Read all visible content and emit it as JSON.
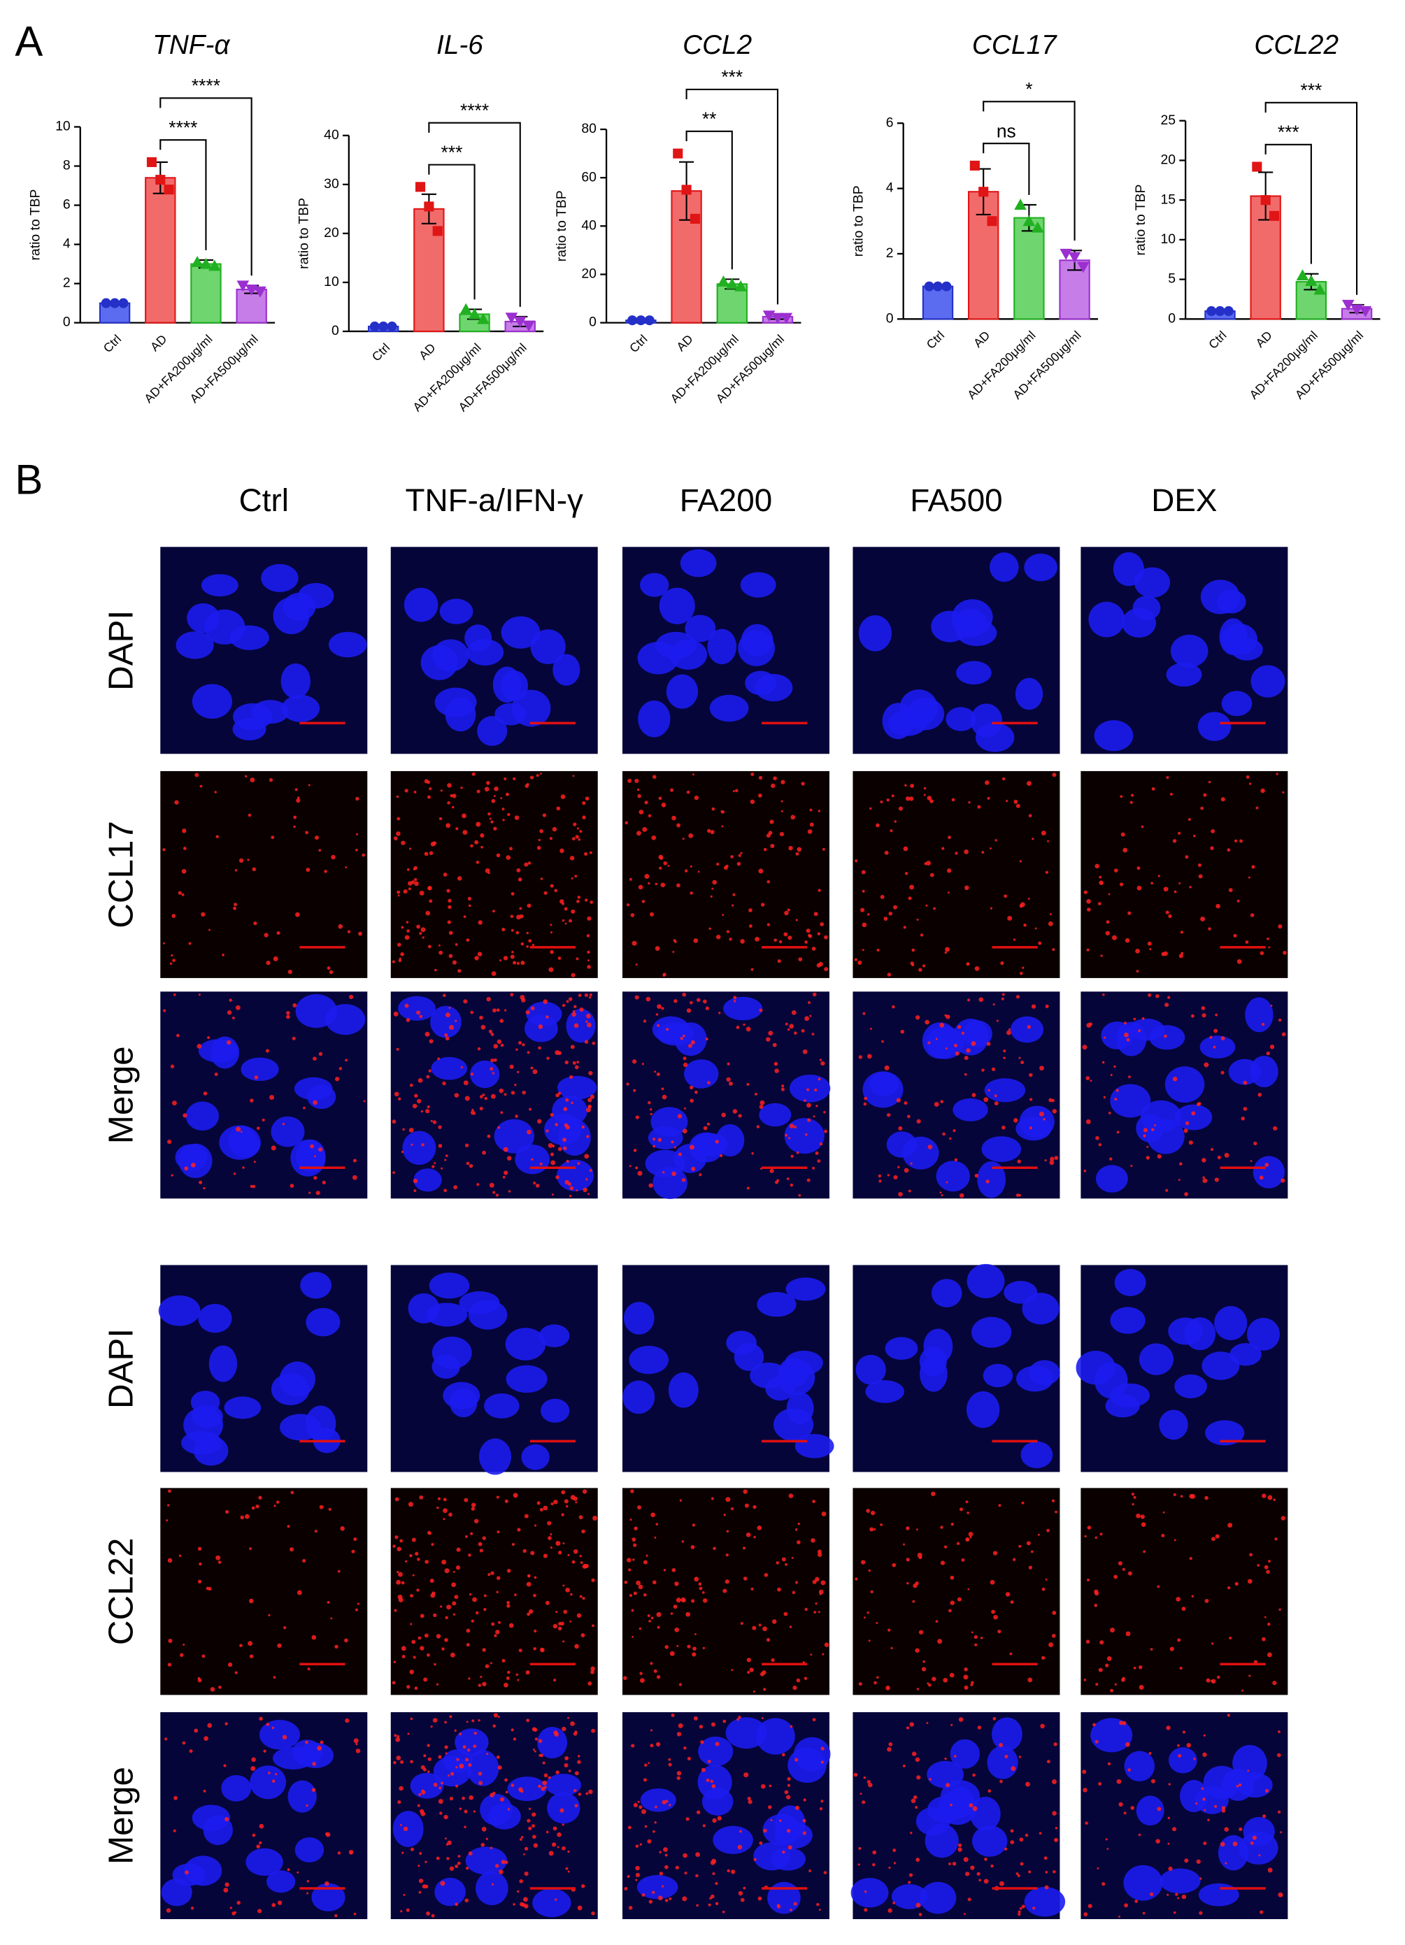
{
  "panel_a_label": "A",
  "panel_b_label": "B",
  "chart_data": [
    {
      "type": "bar",
      "title": "TNF-α",
      "ylabel": "ratio to TBP",
      "categories": [
        "Ctrl",
        "AD",
        "AD+FA200μg/ml",
        "AD+FA500μg/ml"
      ],
      "colors": [
        "#5b6cf0",
        "#f26b6b",
        "#6fd66f",
        "#c77de8"
      ],
      "values": [
        1.0,
        7.4,
        3.0,
        1.7
      ],
      "errors": [
        0.05,
        0.8,
        0.2,
        0.2
      ],
      "points": [
        [
          1.0,
          1.0,
          1.0
        ],
        [
          8.2,
          7.3,
          6.8
        ],
        [
          3.1,
          3.0,
          2.9
        ],
        [
          1.9,
          1.7,
          1.6
        ]
      ],
      "significance": [
        "****",
        "****"
      ],
      "ylim": [
        0,
        10
      ],
      "yticks": [
        0,
        2,
        4,
        6,
        8,
        10
      ]
    },
    {
      "type": "bar",
      "title": "IL-6",
      "ylabel": "ratio to TBP",
      "categories": [
        "Ctrl",
        "AD",
        "AD+FA200μg/ml",
        "AD+FA500μg/ml"
      ],
      "colors": [
        "#5b6cf0",
        "#f26b6b",
        "#6fd66f",
        "#c77de8"
      ],
      "values": [
        1.0,
        25,
        3.5,
        2
      ],
      "errors": [
        0.1,
        3,
        1,
        1
      ],
      "points": [
        [
          1.0,
          1.0,
          1.0
        ],
        [
          29.5,
          25.5,
          20.5
        ],
        [
          4.5,
          3.5,
          2.5
        ],
        [
          2.8,
          2,
          1.2
        ]
      ],
      "significance": [
        "***",
        "****"
      ],
      "ylim": [
        0,
        40
      ],
      "yticks": [
        0,
        10,
        20,
        30,
        40
      ]
    },
    {
      "type": "bar",
      "title": "CCL2",
      "ylabel": "ratio to TBP",
      "categories": [
        "Ctrl",
        "AD",
        "AD+FA200μg/ml",
        "AD+FA500μg/ml"
      ],
      "colors": [
        "#5b6cf0",
        "#f26b6b",
        "#6fd66f",
        "#c77de8"
      ],
      "values": [
        1.0,
        54.5,
        16,
        2.5
      ],
      "errors": [
        0.2,
        12,
        2,
        1
      ],
      "points": [
        [
          1.0,
          1.0,
          1.0
        ],
        [
          70,
          55,
          43
        ],
        [
          17,
          16,
          15
        ],
        [
          3,
          2,
          2
        ]
      ],
      "significance": [
        "**",
        "***"
      ],
      "ylim": [
        0,
        80
      ],
      "yticks": [
        0,
        20,
        40,
        60,
        80
      ]
    },
    {
      "type": "bar",
      "title": "CCL17",
      "ylabel": "ratio to TBP",
      "categories": [
        "Ctrl",
        "AD",
        "AD+FA200μg/ml",
        "AD+FA500μg/ml"
      ],
      "colors": [
        "#5b6cf0",
        "#f26b6b",
        "#6fd66f",
        "#c77de8"
      ],
      "values": [
        1.0,
        3.9,
        3.1,
        1.8
      ],
      "errors": [
        0.05,
        0.7,
        0.4,
        0.3
      ],
      "points": [
        [
          1.0,
          1.0,
          1.0
        ],
        [
          4.7,
          3.9,
          3.0
        ],
        [
          3.5,
          3.0,
          2.8
        ],
        [
          2.0,
          1.9,
          1.6
        ]
      ],
      "significance": [
        "ns",
        "*"
      ],
      "ylim": [
        0,
        6
      ],
      "yticks": [
        0,
        2,
        4,
        6
      ]
    },
    {
      "type": "bar",
      "title": "CCL22",
      "ylabel": "ratio to TBP",
      "categories": [
        "Ctrl",
        "AD",
        "AD+FA200μg/ml",
        "AD+FA500μg/ml"
      ],
      "colors": [
        "#5b6cf0",
        "#f26b6b",
        "#6fd66f",
        "#c77de8"
      ],
      "values": [
        1.0,
        15.5,
        4.7,
        1.3
      ],
      "errors": [
        0.1,
        3,
        1,
        0.5
      ],
      "points": [
        [
          1.0,
          1.0,
          1.0
        ],
        [
          19.2,
          15,
          13
        ],
        [
          5.5,
          4.8,
          3.7
        ],
        [
          1.8,
          1.2,
          1.0
        ]
      ],
      "significance": [
        "***",
        "***"
      ],
      "ylim": [
        0,
        25
      ],
      "yticks": [
        0,
        5,
        10,
        15,
        20,
        25
      ]
    }
  ],
  "microscopy": {
    "columns": [
      "Ctrl",
      "TNF-a/IFN-γ",
      "FA200",
      "FA500",
      "DEX"
    ],
    "rows": [
      "DAPI",
      "CCL17",
      "Merge",
      "DAPI",
      "CCL22",
      "Merge"
    ]
  }
}
